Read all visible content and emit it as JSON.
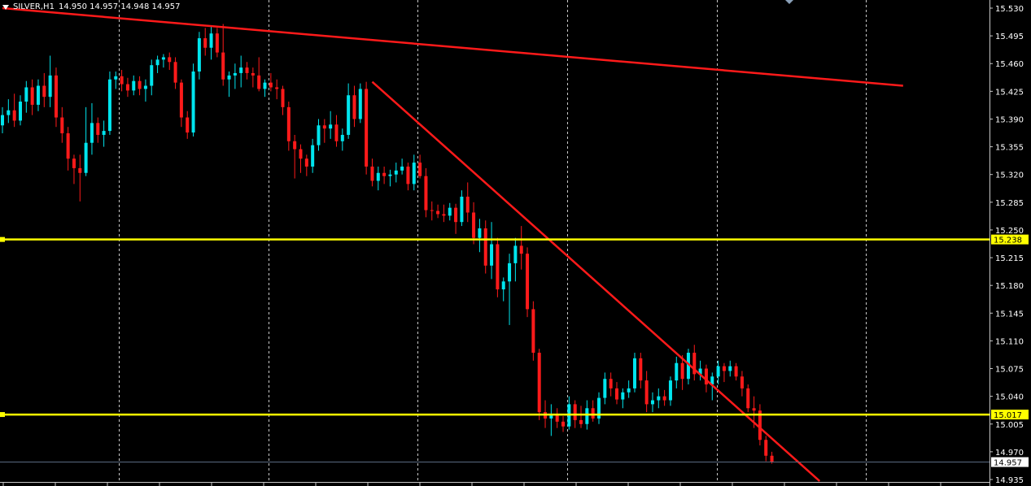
{
  "window": {
    "title": "SILVER,H1",
    "ohlc": "14.950 14.957 14.948 14.957"
  },
  "colors": {
    "background": "#000000",
    "bull": "#00e5ee",
    "bear": "#ff1a1a",
    "grid": "#c8c8c8",
    "trendline": "#ff1a1a",
    "level_line": "#ffff00",
    "bid_line": "#5a6a80"
  },
  "icons": {
    "menu": "triangle-down-icon",
    "scroll": "diamond-marker-icon"
  },
  "chart_data": {
    "type": "candlestick",
    "symbol": "SILVER",
    "timeframe": "H1",
    "ylim": [
      14.925,
      15.54
    ],
    "price_ticks": [
      "15.530",
      "15.495",
      "15.460",
      "15.425",
      "15.390",
      "15.355",
      "15.320",
      "15.285",
      "15.250",
      "15.215",
      "15.180",
      "15.145",
      "15.110",
      "15.075",
      "15.040",
      "15.005",
      "14.970",
      "14.935"
    ],
    "levels": [
      {
        "label": "15.238",
        "value": 15.238
      },
      {
        "label": "15.017",
        "value": 15.017
      }
    ],
    "bid": {
      "label": "14.957",
      "value": 14.957
    },
    "trendlines": [
      {
        "from": {
          "bar": 0,
          "price": 15.53
        },
        "to": {
          "bar": 151,
          "price": 15.432
        }
      },
      {
        "from": {
          "bar": 62,
          "price": 15.437
        },
        "to": {
          "bar": 137,
          "price": 14.933
        }
      }
    ],
    "candles": [
      [
        15.382,
        15.405,
        15.372,
        15.395
      ],
      [
        15.395,
        15.415,
        15.385,
        15.401
      ],
      [
        15.401,
        15.422,
        15.38,
        15.388
      ],
      [
        15.388,
        15.42,
        15.382,
        15.412
      ],
      [
        15.412,
        15.438,
        15.398,
        15.43
      ],
      [
        15.43,
        15.44,
        15.395,
        15.408
      ],
      [
        15.408,
        15.44,
        15.4,
        15.432
      ],
      [
        15.432,
        15.448,
        15.405,
        15.418
      ],
      [
        15.418,
        15.47,
        15.405,
        15.445
      ],
      [
        15.445,
        15.455,
        15.38,
        15.392
      ],
      [
        15.392,
        15.405,
        15.36,
        15.372
      ],
      [
        15.372,
        15.38,
        15.325,
        15.34
      ],
      [
        15.34,
        15.345,
        15.308,
        15.328
      ],
      [
        15.328,
        15.345,
        15.286,
        15.322
      ],
      [
        15.322,
        15.405,
        15.318,
        15.36
      ],
      [
        15.36,
        15.41,
        15.345,
        15.385
      ],
      [
        15.385,
        15.392,
        15.36,
        15.37
      ],
      [
        15.37,
        15.388,
        15.355,
        15.375
      ],
      [
        15.375,
        15.45,
        15.37,
        15.44
      ],
      [
        15.44,
        15.45,
        15.428,
        15.444
      ],
      [
        15.444,
        15.452,
        15.425,
        15.434
      ],
      [
        15.434,
        15.442,
        15.418,
        15.426
      ],
      [
        15.426,
        15.445,
        15.42,
        15.438
      ],
      [
        15.438,
        15.444,
        15.42,
        15.428
      ],
      [
        15.428,
        15.44,
        15.412,
        15.432
      ],
      [
        15.432,
        15.465,
        15.42,
        15.458
      ],
      [
        15.458,
        15.47,
        15.448,
        15.465
      ],
      [
        15.465,
        15.472,
        15.455,
        15.468
      ],
      [
        15.468,
        15.474,
        15.452,
        15.462
      ],
      [
        15.462,
        15.468,
        15.428,
        15.436
      ],
      [
        15.436,
        15.44,
        15.38,
        15.392
      ],
      [
        15.392,
        15.4,
        15.365,
        15.373
      ],
      [
        15.373,
        15.46,
        15.368,
        15.45
      ],
      [
        15.45,
        15.5,
        15.44,
        15.492
      ],
      [
        15.492,
        15.505,
        15.47,
        15.48
      ],
      [
        15.48,
        15.508,
        15.465,
        15.498
      ],
      [
        15.498,
        15.505,
        15.468,
        15.474
      ],
      [
        15.474,
        15.51,
        15.432,
        15.44
      ],
      [
        15.44,
        15.45,
        15.418,
        15.445
      ],
      [
        15.445,
        15.46,
        15.428,
        15.448
      ],
      [
        15.448,
        15.47,
        15.43,
        15.455
      ],
      [
        15.455,
        15.462,
        15.44,
        15.448
      ],
      [
        15.448,
        15.455,
        15.43,
        15.445
      ],
      [
        15.445,
        15.468,
        15.425,
        15.428
      ],
      [
        15.428,
        15.44,
        15.418,
        15.436
      ],
      [
        15.436,
        15.448,
        15.425,
        15.43
      ],
      [
        15.43,
        15.44,
        15.415,
        15.428
      ],
      [
        15.428,
        15.432,
        15.395,
        15.405
      ],
      [
        15.405,
        15.412,
        15.35,
        15.362
      ],
      [
        15.362,
        15.37,
        15.315,
        15.352
      ],
      [
        15.352,
        15.358,
        15.322,
        15.34
      ],
      [
        15.34,
        15.345,
        15.318,
        15.33
      ],
      [
        15.33,
        15.365,
        15.322,
        15.357
      ],
      [
        15.357,
        15.39,
        15.35,
        15.382
      ],
      [
        15.382,
        15.39,
        15.36,
        15.378
      ],
      [
        15.378,
        15.4,
        15.365,
        15.383
      ],
      [
        15.383,
        15.395,
        15.355,
        15.362
      ],
      [
        15.362,
        15.378,
        15.35,
        15.37
      ],
      [
        15.37,
        15.435,
        15.365,
        15.42
      ],
      [
        15.42,
        15.432,
        15.38,
        15.39
      ],
      [
        15.39,
        15.435,
        15.385,
        15.428
      ],
      [
        15.428,
        15.437,
        15.32,
        15.33
      ],
      [
        15.33,
        15.34,
        15.305,
        15.312
      ],
      [
        15.312,
        15.33,
        15.3,
        15.322
      ],
      [
        15.322,
        15.33,
        15.308,
        15.318
      ],
      [
        15.318,
        15.326,
        15.305,
        15.32
      ],
      [
        15.32,
        15.335,
        15.31,
        15.325
      ],
      [
        15.325,
        15.34,
        15.32,
        15.33
      ],
      [
        15.33,
        15.335,
        15.3,
        15.308
      ],
      [
        15.308,
        15.345,
        15.3,
        15.335
      ],
      [
        15.335,
        15.345,
        15.315,
        15.318
      ],
      [
        15.318,
        15.328,
        15.266,
        15.275
      ],
      [
        15.275,
        15.286,
        15.262,
        15.274
      ],
      [
        15.274,
        15.282,
        15.265,
        15.27
      ],
      [
        15.27,
        15.282,
        15.26,
        15.268
      ],
      [
        15.268,
        15.284,
        15.262,
        15.278
      ],
      [
        15.278,
        15.283,
        15.245,
        15.26
      ],
      [
        15.26,
        15.3,
        15.255,
        15.292
      ],
      [
        15.292,
        15.31,
        15.26,
        15.272
      ],
      [
        15.272,
        15.285,
        15.232,
        15.24
      ],
      [
        15.24,
        15.264,
        15.222,
        15.252
      ],
      [
        15.252,
        15.262,
        15.195,
        15.205
      ],
      [
        15.205,
        15.26,
        15.188,
        15.232
      ],
      [
        15.232,
        15.24,
        15.165,
        15.175
      ],
      [
        15.175,
        15.19,
        15.16,
        15.185
      ],
      [
        15.185,
        15.22,
        15.13,
        15.208
      ],
      [
        15.208,
        15.24,
        15.185,
        15.23
      ],
      [
        15.23,
        15.255,
        15.2,
        15.22
      ],
      [
        15.22,
        15.228,
        15.14,
        15.15
      ],
      [
        15.15,
        15.16,
        15.085,
        15.095
      ],
      [
        15.095,
        15.1,
        15.01,
        15.02
      ],
      [
        15.02,
        15.035,
        15.0,
        15.012
      ],
      [
        15.012,
        15.03,
        14.99,
        15.018
      ],
      [
        15.018,
        15.025,
        15.0,
        15.008
      ],
      [
        15.008,
        15.015,
        14.995,
        15.002
      ],
      [
        15.002,
        15.04,
        14.998,
        15.03
      ],
      [
        15.03,
        15.035,
        15.0,
        15.01
      ],
      [
        15.01,
        15.028,
        15.0,
        15.005
      ],
      [
        15.005,
        15.035,
        14.998,
        15.025
      ],
      [
        15.025,
        15.035,
        15.008,
        15.012
      ],
      [
        15.012,
        15.045,
        15.005,
        15.038
      ],
      [
        15.038,
        15.07,
        15.03,
        15.062
      ],
      [
        15.062,
        15.07,
        15.04,
        15.05
      ],
      [
        15.05,
        15.058,
        15.03,
        15.036
      ],
      [
        15.036,
        15.05,
        15.025,
        15.045
      ],
      [
        15.045,
        15.06,
        15.038,
        15.05
      ],
      [
        15.05,
        15.095,
        15.045,
        15.088
      ],
      [
        15.088,
        15.095,
        15.05,
        15.06
      ],
      [
        15.06,
        15.072,
        15.02,
        15.03
      ],
      [
        15.03,
        15.045,
        15.02,
        15.035
      ],
      [
        15.035,
        15.05,
        15.025,
        15.04
      ],
      [
        15.04,
        15.048,
        15.028,
        15.035
      ],
      [
        15.035,
        15.065,
        15.028,
        15.06
      ],
      [
        15.06,
        15.09,
        15.05,
        15.082
      ],
      [
        15.082,
        15.092,
        15.048,
        15.062
      ],
      [
        15.062,
        15.1,
        15.055,
        15.095
      ],
      [
        15.095,
        15.105,
        15.06,
        15.068
      ],
      [
        15.068,
        15.085,
        15.06,
        15.075
      ],
      [
        15.075,
        15.08,
        15.045,
        15.055
      ],
      [
        15.055,
        15.07,
        15.035,
        15.065
      ],
      [
        15.065,
        15.085,
        15.055,
        15.078
      ],
      [
        15.078,
        15.082,
        15.058,
        15.072
      ],
      [
        15.072,
        15.085,
        15.065,
        15.078
      ],
      [
        15.078,
        15.082,
        15.06,
        15.065
      ],
      [
        15.065,
        15.072,
        15.04,
        15.05
      ],
      [
        15.05,
        15.055,
        15.02,
        15.025
      ],
      [
        15.025,
        15.04,
        15.0,
        15.022
      ],
      [
        15.022,
        15.03,
        14.978,
        14.985
      ],
      [
        14.985,
        14.99,
        14.958,
        14.965
      ],
      [
        14.965,
        14.97,
        14.955,
        14.957
      ]
    ]
  }
}
